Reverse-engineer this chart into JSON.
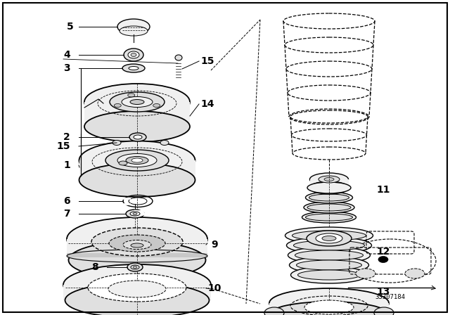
{
  "bg_color": "#ffffff",
  "border_color": "#000000",
  "ref_code": "33307184",
  "number_fontsize": 10,
  "number_fontweight": "bold",
  "number_color": "#000000",
  "line_color": "#000000",
  "fig_w": 6.4,
  "fig_h": 4.48,
  "dpi": 100
}
